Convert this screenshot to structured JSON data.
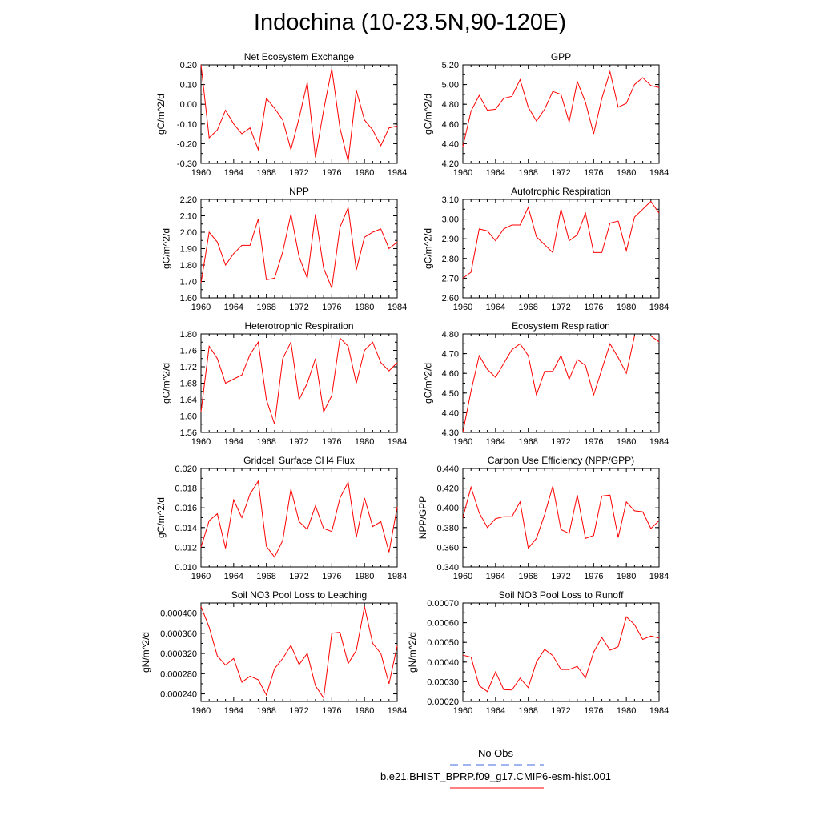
{
  "title": "Indochina (10-23.5N,90-120E)",
  "legend": {
    "obs_label": "No Obs",
    "obs_color": "#4169e1",
    "model_label": "b.e21.BHIST_BPRP.f09_g17.CMIP6-esm-hist.001",
    "model_color": "#ff0000"
  },
  "chart_data": [
    {
      "type": "line",
      "title": "Net Ecosystem Exchange",
      "ylabel": "gC/m^2/d",
      "xlim": [
        1960,
        1984
      ],
      "ylim": [
        -0.3,
        0.2
      ],
      "yticks": [
        "0.20",
        "0.10",
        "0.00",
        "-0.10",
        "-0.20",
        "-0.30"
      ],
      "ytick_values": [
        0.2,
        0.1,
        0.0,
        -0.1,
        -0.2,
        -0.3
      ],
      "xticks": [
        "1960",
        "1964",
        "1968",
        "1972",
        "1976",
        "1980",
        "1984"
      ],
      "x": [
        1960,
        1961,
        1962,
        1963,
        1964,
        1965,
        1966,
        1967,
        1968,
        1969,
        1970,
        1971,
        1972,
        1973,
        1974,
        1975,
        1976,
        1977,
        1978,
        1979,
        1980,
        1981,
        1982,
        1983,
        1984
      ],
      "series": [
        {
          "values": [
            0.2,
            -0.17,
            -0.13,
            -0.03,
            -0.1,
            -0.15,
            -0.12,
            -0.23,
            0.03,
            -0.02,
            -0.08,
            -0.23,
            -0.07,
            0.11,
            -0.27,
            -0.03,
            0.18,
            -0.12,
            -0.29,
            0.07,
            -0.08,
            -0.13,
            -0.21,
            -0.12,
            -0.11
          ],
          "color": "#ff0000"
        }
      ]
    },
    {
      "type": "line",
      "title": "GPP",
      "ylabel": "gC/m^2/d",
      "xlim": [
        1960,
        1984
      ],
      "ylim": [
        4.2,
        5.2
      ],
      "yticks": [
        "5.20",
        "5.00",
        "4.80",
        "4.60",
        "4.40",
        "4.20"
      ],
      "ytick_values": [
        5.2,
        5.0,
        4.8,
        4.6,
        4.4,
        4.2
      ],
      "xticks": [
        "1960",
        "1964",
        "1968",
        "1972",
        "1976",
        "1980",
        "1984"
      ],
      "x": [
        1960,
        1961,
        1962,
        1963,
        1964,
        1965,
        1966,
        1967,
        1968,
        1969,
        1970,
        1971,
        1972,
        1973,
        1974,
        1975,
        1976,
        1977,
        1978,
        1979,
        1980,
        1981,
        1982,
        1983,
        1984
      ],
      "series": [
        {
          "values": [
            4.37,
            4.73,
            4.89,
            4.74,
            4.75,
            4.86,
            4.88,
            5.05,
            4.77,
            4.63,
            4.75,
            4.93,
            4.9,
            4.62,
            5.03,
            4.82,
            4.5,
            4.86,
            5.13,
            4.77,
            4.81,
            5.0,
            5.07,
            4.99,
            4.97
          ],
          "color": "#ff0000"
        }
      ]
    },
    {
      "type": "line",
      "title": "NPP",
      "ylabel": "gC/m^2/d",
      "xlim": [
        1960,
        1984
      ],
      "ylim": [
        1.6,
        2.2
      ],
      "yticks": [
        "2.20",
        "2.10",
        "2.00",
        "1.90",
        "1.80",
        "1.70",
        "1.60"
      ],
      "ytick_values": [
        2.2,
        2.1,
        2.0,
        1.9,
        1.8,
        1.7,
        1.6
      ],
      "xticks": [
        "1960",
        "1964",
        "1968",
        "1972",
        "1976",
        "1980",
        "1984"
      ],
      "x": [
        1960,
        1961,
        1962,
        1963,
        1964,
        1965,
        1966,
        1967,
        1968,
        1969,
        1970,
        1971,
        1972,
        1973,
        1974,
        1975,
        1976,
        1977,
        1978,
        1979,
        1980,
        1981,
        1982,
        1983,
        1984
      ],
      "series": [
        {
          "values": [
            1.69,
            2.0,
            1.94,
            1.8,
            1.87,
            1.92,
            1.92,
            2.08,
            1.71,
            1.72,
            1.88,
            2.11,
            1.85,
            1.72,
            2.11,
            1.78,
            1.66,
            2.03,
            2.15,
            1.77,
            1.97,
            2.0,
            2.02,
            1.9,
            1.94
          ],
          "color": "#ff0000"
        }
      ]
    },
    {
      "type": "line",
      "title": "Autotrophic Respiration",
      "ylabel": "gC/m^2/d",
      "xlim": [
        1960,
        1984
      ],
      "ylim": [
        2.6,
        3.1
      ],
      "yticks": [
        "3.10",
        "3.00",
        "2.90",
        "2.80",
        "2.70",
        "2.60"
      ],
      "ytick_values": [
        3.1,
        3.0,
        2.9,
        2.8,
        2.7,
        2.6
      ],
      "xticks": [
        "1960",
        "1964",
        "1968",
        "1972",
        "1976",
        "1980",
        "1984"
      ],
      "x": [
        1960,
        1961,
        1962,
        1963,
        1964,
        1965,
        1966,
        1967,
        1968,
        1969,
        1970,
        1971,
        1972,
        1973,
        1974,
        1975,
        1976,
        1977,
        1978,
        1979,
        1980,
        1981,
        1982,
        1983,
        1984
      ],
      "series": [
        {
          "values": [
            2.7,
            2.73,
            2.95,
            2.94,
            2.89,
            2.95,
            2.97,
            2.97,
            3.06,
            2.91,
            2.87,
            2.83,
            3.05,
            2.89,
            2.92,
            3.03,
            2.83,
            2.83,
            2.98,
            2.99,
            2.84,
            3.01,
            3.05,
            3.09,
            3.03
          ],
          "color": "#ff0000"
        }
      ]
    },
    {
      "type": "line",
      "title": "Heterotrophic Respiration",
      "ylabel": "gC/m^2/d",
      "xlim": [
        1960,
        1984
      ],
      "ylim": [
        1.56,
        1.8
      ],
      "yticks": [
        "1.80",
        "1.76",
        "1.72",
        "1.68",
        "1.64",
        "1.60",
        "1.56"
      ],
      "ytick_values": [
        1.8,
        1.76,
        1.72,
        1.68,
        1.64,
        1.6,
        1.56
      ],
      "xticks": [
        "1960",
        "1964",
        "1968",
        "1972",
        "1976",
        "1980",
        "1984"
      ],
      "x": [
        1960,
        1961,
        1962,
        1963,
        1964,
        1965,
        1966,
        1967,
        1968,
        1969,
        1970,
        1971,
        1972,
        1973,
        1974,
        1975,
        1976,
        1977,
        1978,
        1979,
        1980,
        1981,
        1982,
        1983,
        1984
      ],
      "series": [
        {
          "values": [
            1.61,
            1.77,
            1.74,
            1.68,
            1.69,
            1.7,
            1.75,
            1.78,
            1.64,
            1.58,
            1.74,
            1.78,
            1.64,
            1.68,
            1.74,
            1.61,
            1.65,
            1.79,
            1.77,
            1.68,
            1.76,
            1.78,
            1.73,
            1.71,
            1.73
          ],
          "color": "#ff0000"
        }
      ]
    },
    {
      "type": "line",
      "title": "Ecosystem Respiration",
      "ylabel": "gC/m^2/d",
      "xlim": [
        1960,
        1984
      ],
      "ylim": [
        4.3,
        4.8
      ],
      "yticks": [
        "4.80",
        "4.70",
        "4.60",
        "4.50",
        "4.40",
        "4.30"
      ],
      "ytick_values": [
        4.8,
        4.7,
        4.6,
        4.5,
        4.4,
        4.3
      ],
      "xticks": [
        "1960",
        "1964",
        "1968",
        "1972",
        "1976",
        "1980",
        "1984"
      ],
      "x": [
        1960,
        1961,
        1962,
        1963,
        1964,
        1965,
        1966,
        1967,
        1968,
        1969,
        1970,
        1971,
        1972,
        1973,
        1974,
        1975,
        1976,
        1977,
        1978,
        1979,
        1980,
        1981,
        1982,
        1983,
        1984
      ],
      "series": [
        {
          "values": [
            4.3,
            4.51,
            4.69,
            4.62,
            4.58,
            4.65,
            4.72,
            4.75,
            4.69,
            4.49,
            4.61,
            4.61,
            4.69,
            4.57,
            4.67,
            4.64,
            4.49,
            4.62,
            4.75,
            4.68,
            4.6,
            4.79,
            4.79,
            4.79,
            4.76
          ],
          "color": "#ff0000"
        }
      ]
    },
    {
      "type": "line",
      "title": "Gridcell Surface CH4 Flux",
      "ylabel": "gC/m^2/d",
      "xlim": [
        1960,
        1984
      ],
      "ylim": [
        0.01,
        0.02
      ],
      "yticks": [
        "0.020",
        "0.018",
        "0.016",
        "0.014",
        "0.012",
        "0.010"
      ],
      "ytick_values": [
        0.02,
        0.018,
        0.016,
        0.014,
        0.012,
        0.01
      ],
      "xticks": [
        "1960",
        "1964",
        "1968",
        "1972",
        "1976",
        "1980",
        "1984"
      ],
      "x": [
        1960,
        1961,
        1962,
        1963,
        1964,
        1965,
        1966,
        1967,
        1968,
        1969,
        1970,
        1971,
        1972,
        1973,
        1974,
        1975,
        1976,
        1977,
        1978,
        1979,
        1980,
        1981,
        1982,
        1983,
        1984
      ],
      "series": [
        {
          "values": [
            0.012,
            0.0147,
            0.0154,
            0.0119,
            0.0168,
            0.015,
            0.0174,
            0.0187,
            0.0121,
            0.011,
            0.0127,
            0.0179,
            0.0146,
            0.0138,
            0.0162,
            0.0139,
            0.0136,
            0.017,
            0.0186,
            0.013,
            0.017,
            0.0141,
            0.0146,
            0.0115,
            0.0161
          ],
          "color": "#ff0000"
        }
      ]
    },
    {
      "type": "line",
      "title": "Carbon Use Efficiency (NPP/GPP)",
      "ylabel": "NPP/GPP",
      "xlim": [
        1960,
        1984
      ],
      "ylim": [
        0.34,
        0.44
      ],
      "yticks": [
        "0.440",
        "0.420",
        "0.400",
        "0.380",
        "0.360",
        "0.340"
      ],
      "ytick_values": [
        0.44,
        0.42,
        0.4,
        0.38,
        0.36,
        0.34
      ],
      "xticks": [
        "1960",
        "1964",
        "1968",
        "1972",
        "1976",
        "1980",
        "1984"
      ],
      "x": [
        1960,
        1961,
        1962,
        1963,
        1964,
        1965,
        1966,
        1967,
        1968,
        1969,
        1970,
        1971,
        1972,
        1973,
        1974,
        1975,
        1976,
        1977,
        1978,
        1979,
        1980,
        1981,
        1982,
        1983,
        1984
      ],
      "series": [
        {
          "values": [
            0.39,
            0.421,
            0.395,
            0.38,
            0.389,
            0.391,
            0.391,
            0.406,
            0.359,
            0.369,
            0.393,
            0.422,
            0.378,
            0.374,
            0.413,
            0.369,
            0.372,
            0.412,
            0.413,
            0.37,
            0.406,
            0.397,
            0.396,
            0.379,
            0.387
          ],
          "color": "#ff0000"
        }
      ]
    },
    {
      "type": "line",
      "title": "Soil NO3 Pool Loss to Leaching",
      "ylabel": "gN/m^2/d",
      "xlim": [
        1960,
        1984
      ],
      "ylim": [
        0.000225,
        0.00042
      ],
      "yticks": [
        "0.000400",
        "0.000360",
        "0.000320",
        "0.000280",
        "0.000240"
      ],
      "ytick_values": [
        0.0004,
        0.00036,
        0.00032,
        0.00028,
        0.00024
      ],
      "xticks": [
        "1960",
        "1964",
        "1968",
        "1972",
        "1976",
        "1980",
        "1984"
      ],
      "x": [
        1960,
        1961,
        1962,
        1963,
        1964,
        1965,
        1966,
        1967,
        1968,
        1969,
        1970,
        1971,
        1972,
        1973,
        1974,
        1975,
        1976,
        1977,
        1978,
        1979,
        1980,
        1981,
        1982,
        1983,
        1984
      ],
      "series": [
        {
          "values": [
            0.000413,
            0.000372,
            0.000315,
            0.000297,
            0.00031,
            0.000263,
            0.000275,
            0.000268,
            0.000238,
            0.00029,
            0.00031,
            0.000336,
            0.000298,
            0.00032,
            0.000256,
            0.000232,
            0.00036,
            0.000362,
            0.0003,
            0.000326,
            0.000413,
            0.00034,
            0.00032,
            0.00026,
            0.000335
          ],
          "color": "#ff0000"
        }
      ]
    },
    {
      "type": "line",
      "title": "Soil NO3 Pool Loss to Runoff",
      "ylabel": "gN/m^2/d",
      "xlim": [
        1960,
        1984
      ],
      "ylim": [
        0.0002,
        0.0007
      ],
      "yticks": [
        "0.00070",
        "0.00060",
        "0.00050",
        "0.00040",
        "0.00030",
        "0.00020"
      ],
      "ytick_values": [
        0.0007,
        0.0006,
        0.0005,
        0.0004,
        0.0003,
        0.0002
      ],
      "xticks": [
        "1960",
        "1964",
        "1968",
        "1972",
        "1976",
        "1980",
        "1984"
      ],
      "x": [
        1960,
        1961,
        1962,
        1963,
        1964,
        1965,
        1966,
        1967,
        1968,
        1969,
        1970,
        1971,
        1972,
        1973,
        1974,
        1975,
        1976,
        1977,
        1978,
        1979,
        1980,
        1981,
        1982,
        1983,
        1984
      ],
      "series": [
        {
          "values": [
            0.000435,
            0.000425,
            0.00028,
            0.00025,
            0.00035,
            0.00026,
            0.000258,
            0.000318,
            0.00027,
            0.0004,
            0.000465,
            0.000433,
            0.000362,
            0.000362,
            0.000378,
            0.00032,
            0.00045,
            0.000525,
            0.00046,
            0.000478,
            0.00063,
            0.00059,
            0.000515,
            0.000532,
            0.000522
          ],
          "color": "#ff0000"
        }
      ]
    }
  ]
}
